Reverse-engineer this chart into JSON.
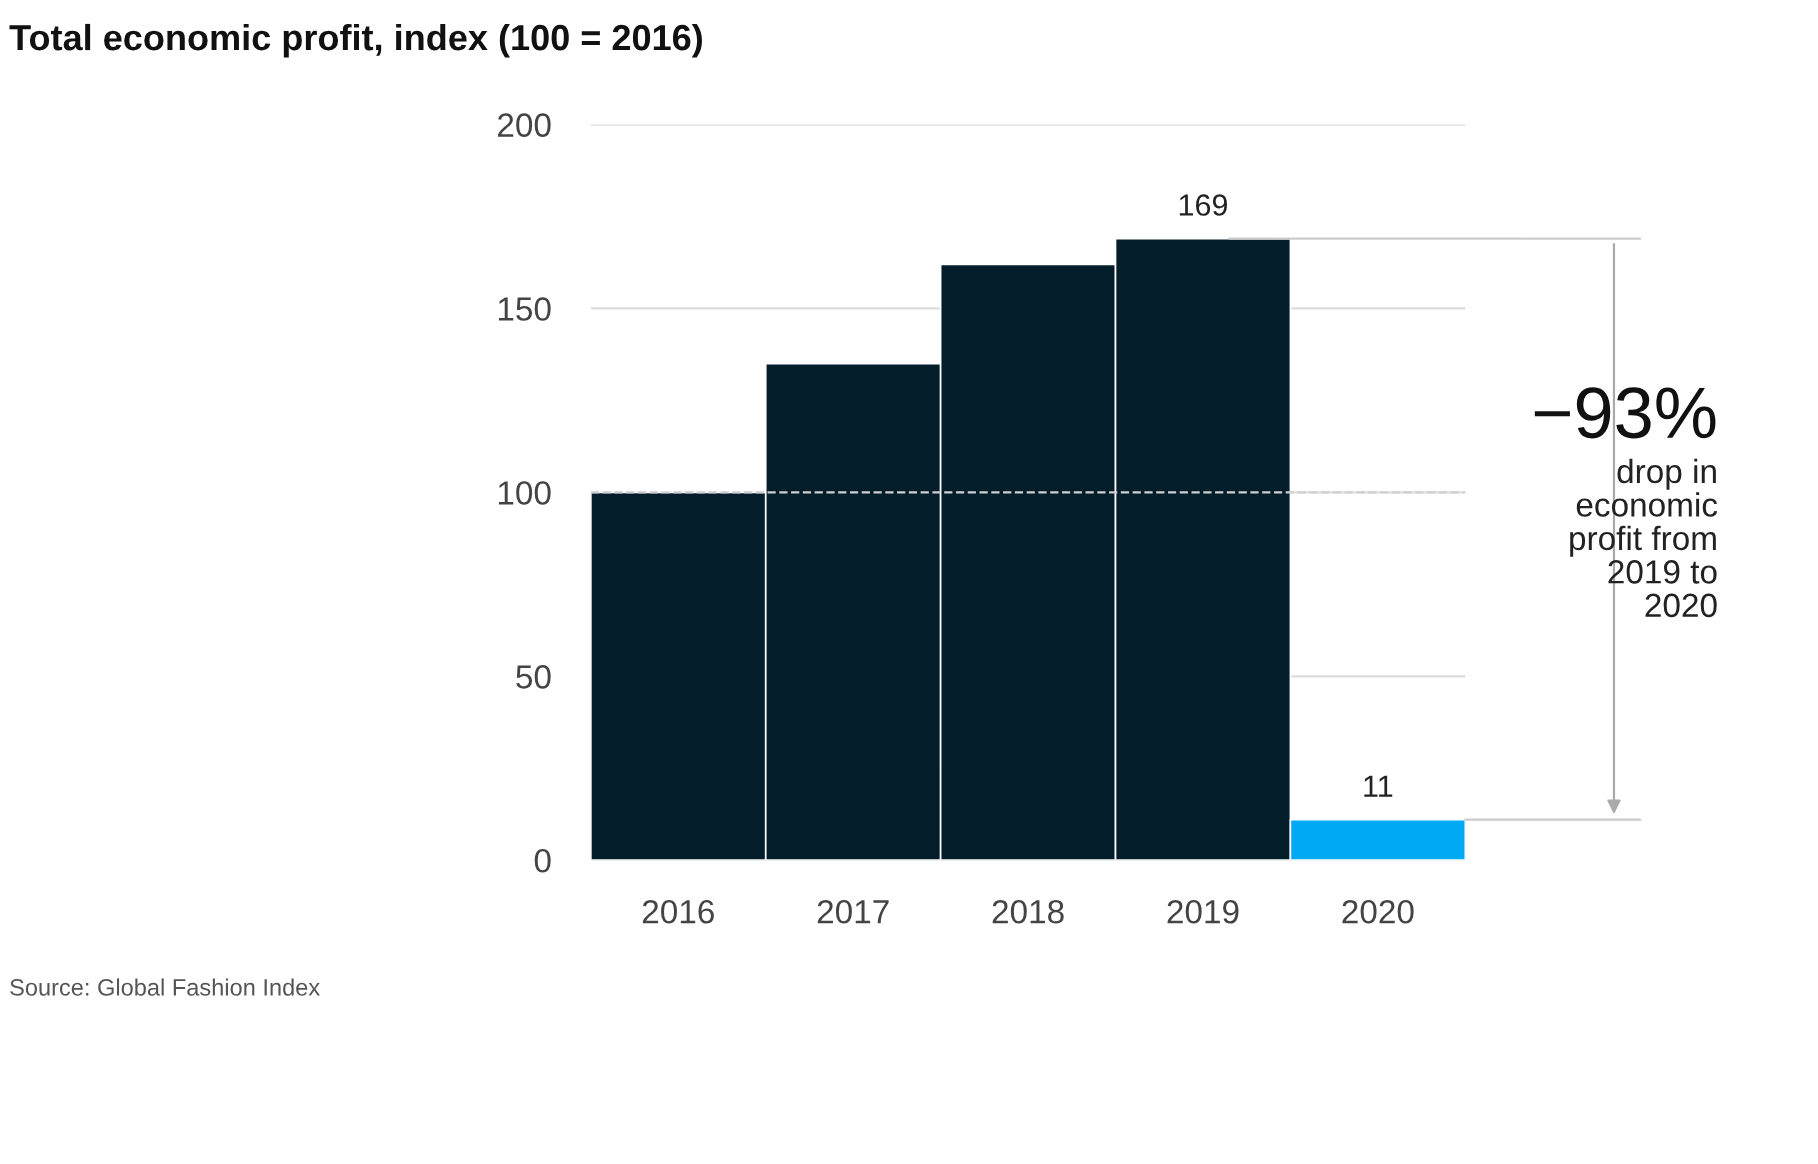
{
  "chart_data": {
    "type": "bar",
    "title": "Total economic profit, index (100 = 2016)",
    "categories": [
      "2016",
      "2017",
      "2018",
      "2019",
      "2020"
    ],
    "values": [
      100,
      135,
      162,
      169,
      11
    ],
    "colors": [
      "#031d2b",
      "#031d2b",
      "#031d2b",
      "#031d2b",
      "#00a9f4"
    ],
    "value_labels": [
      null,
      null,
      null,
      "169",
      "11"
    ],
    "ylim": [
      0,
      200
    ],
    "yticks": [
      0,
      50,
      100,
      150,
      200
    ],
    "grid": "y",
    "ref_lines": [
      {
        "axis": "y",
        "value": 100,
        "color": "#d0d0d0",
        "line_style": "dashed"
      }
    ],
    "annotations": [
      "−93%",
      "drop in\neconomic\nprofit from\n2019 to\n2020",
      "Source: Global Fashion Index"
    ]
  }
}
